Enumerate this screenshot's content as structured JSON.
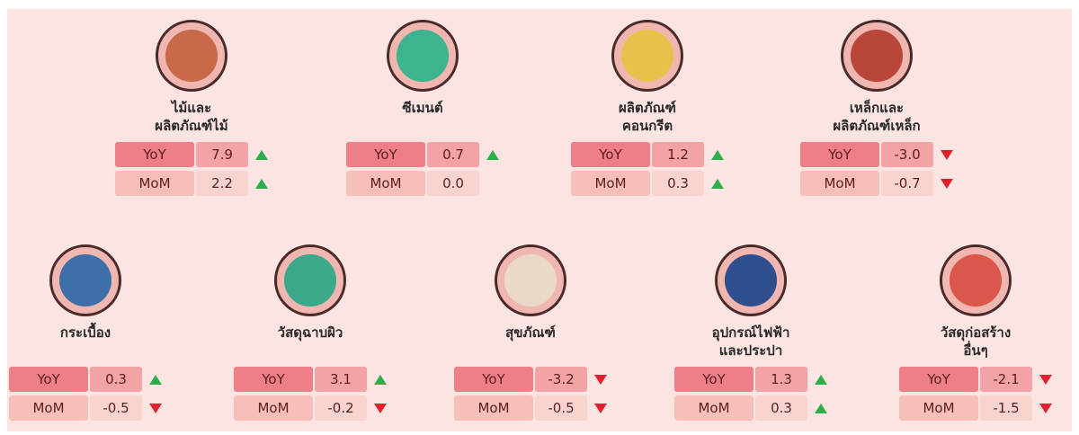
{
  "row_labels": {
    "yoy": "YoY",
    "mom": "MoM"
  },
  "items": [
    {
      "label": [
        "ไม้และ",
        "ผลิตภัณฑ์ไม้"
      ],
      "yoy": "7.9",
      "mom": "2.2"
    },
    {
      "label": [
        "ซีเมนต์"
      ],
      "yoy": "0.7",
      "mom": "0.0"
    },
    {
      "label": [
        "ผลิตภัณฑ์",
        "คอนกรีต"
      ],
      "yoy": "1.2",
      "mom": "0.3"
    },
    {
      "label": [
        "เหล็กและ",
        "ผลิตภัณฑ์เหล็ก"
      ],
      "yoy": "-3.0",
      "mom": "-0.7"
    },
    {
      "label": [
        "กระเบื้อง"
      ],
      "yoy": "0.3",
      "mom": "-0.5"
    },
    {
      "label": [
        "วัสดุฉาบผิว"
      ],
      "yoy": "3.1",
      "mom": "-0.2"
    },
    {
      "label": [
        "สุขภัณฑ์"
      ],
      "yoy": "-3.2",
      "mom": "-0.5"
    },
    {
      "label": [
        "อุปกรณ์ไฟฟ้า",
        "และประปา"
      ],
      "yoy": "1.3",
      "mom": "0.3"
    },
    {
      "label": [
        "วัสดุก่อสร้าง",
        "อื่นๆ"
      ],
      "yoy": "-2.1",
      "mom": "-1.5"
    }
  ]
}
